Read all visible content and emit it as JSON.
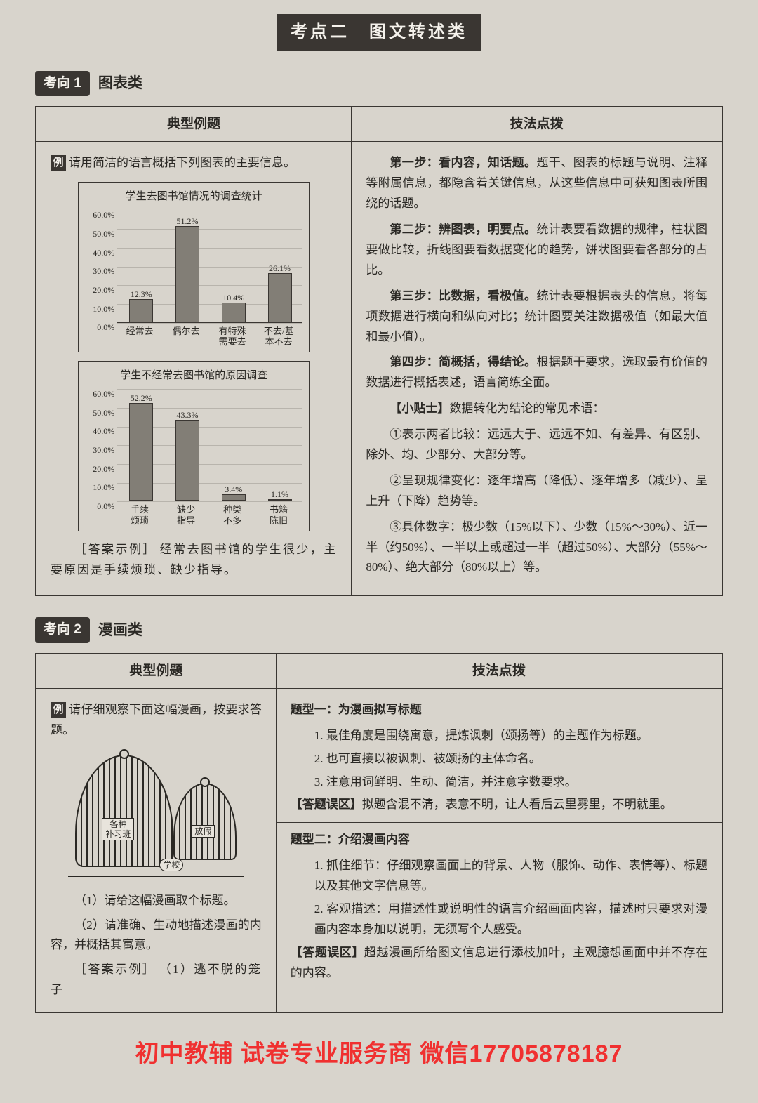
{
  "banner": "考点二　图文转述类",
  "section1": {
    "tag": "考向 1",
    "title": "图表类",
    "th_left": "典型例题",
    "th_right": "技法点拨",
    "example_icon": "例",
    "example_q": "请用简洁的语言概括下列图表的主要信息。",
    "chart1": {
      "title": "学生去图书馆情况的调查统计",
      "ymax": 60,
      "ystep": 10,
      "categories": [
        "经常去",
        "偶尔去",
        "有特殊\n需要去",
        "不去/基\n本不去"
      ],
      "values": [
        12.3,
        51.2,
        10.4,
        26.1
      ],
      "labels": [
        "12.3%",
        "51.2%",
        "10.4%",
        "26.1%"
      ],
      "bar_color": "#827e76"
    },
    "chart2": {
      "title": "学生不经常去图书馆的原因调查",
      "ymax": 60,
      "ystep": 10,
      "categories": [
        "手续\n烦琐",
        "缺少\n指导",
        "种类\n不多",
        "书籍\n陈旧"
      ],
      "values": [
        52.2,
        43.3,
        3.4,
        1.1
      ],
      "labels": [
        "52.2%",
        "43.3%",
        "3.4%",
        "1.1%"
      ],
      "bar_color": "#827e76"
    },
    "answer_label": "［答案示例］",
    "answer_text": "经常去图书馆的学生很少，主要原因是手续烦琐、缺少指导。",
    "tips": {
      "p1a": "第一步：看内容，知话题。",
      "p1b": "题干、图表的标题与说明、注释等附属信息，都隐含着关键信息，从这些信息中可获知图表所围绕的话题。",
      "p2a": "第二步：辨图表，明要点。",
      "p2b": "统计表要看数据的规律，柱状图要做比较，折线图要看数据变化的趋势，饼状图要看各部分的占比。",
      "p3a": "第三步：比数据，看极值。",
      "p3b": "统计表要根据表头的信息，将每项数据进行横向和纵向对比；统计图要关注数据极值（如最大值和最小值）。",
      "p4a": "第四步：简概括，得结论。",
      "p4b": "根据题干要求，选取最有价值的数据进行概括表述，语言简练全面。",
      "tip_label": "【小贴士】",
      "tip_title": "数据转化为结论的常见术语：",
      "tip1": "①表示两者比较：远远大于、远远不如、有差异、有区别、除外、均、少部分、大部分等。",
      "tip2": "②呈现规律变化：逐年增高（降低）、逐年增多（减少）、呈上升（下降）趋势等。",
      "tip3": "③具体数字：极少数（15%以下）、少数（15%～30%）、近一半（约50%）、一半以上或超过一半（超过50%）、大部分（55%～80%）、绝大部分（80%以上）等。"
    }
  },
  "section2": {
    "tag": "考向 2",
    "title": "漫画类",
    "th_left": "典型例题",
    "th_right": "技法点拨",
    "example_icon": "例",
    "example_q": "请仔细观察下面这幅漫画，按要求答题。",
    "cage_labels": {
      "big": "各种\n补习班",
      "small": "放假",
      "ground": "学校"
    },
    "q1": "（1）请给这幅漫画取个标题。",
    "q2": "（2）请准确、生动地描述漫画的内容，并概括其寓意。",
    "answer_label": "［答案示例］",
    "answer_text": "（1）逃不脱的笼子",
    "tips": {
      "h1": "题型一：为漫画拟写标题",
      "t1_1": "1. 最佳角度是围绕寓意，提炼讽刺（颂扬等）的主题作为标题。",
      "t1_2": "2. 也可直接以被讽刺、被颂扬的主体命名。",
      "t1_3": "3. 注意用词鲜明、生动、简洁，并注意字数要求。",
      "err1_label": "【答题误区】",
      "err1": "拟题含混不清，表意不明，让人看后云里雾里，不明就里。",
      "h2": "题型二：介绍漫画内容",
      "t2_1": "1. 抓住细节：仔细观察画面上的背景、人物（服饰、动作、表情等）、标题以及其他文字信息等。",
      "t2_2": "2. 客观描述：用描述性或说明性的语言介绍画面内容，描述时只要求对漫画内容本身加以说明，无须写个人感受。",
      "err2_label": "【答题误区】",
      "err2": "超越漫画所给图文信息进行添枝加叶，主观臆想画面中并不存在的内容。"
    }
  },
  "watermark": "初中教辅 试卷专业服务商 微信17705878187"
}
